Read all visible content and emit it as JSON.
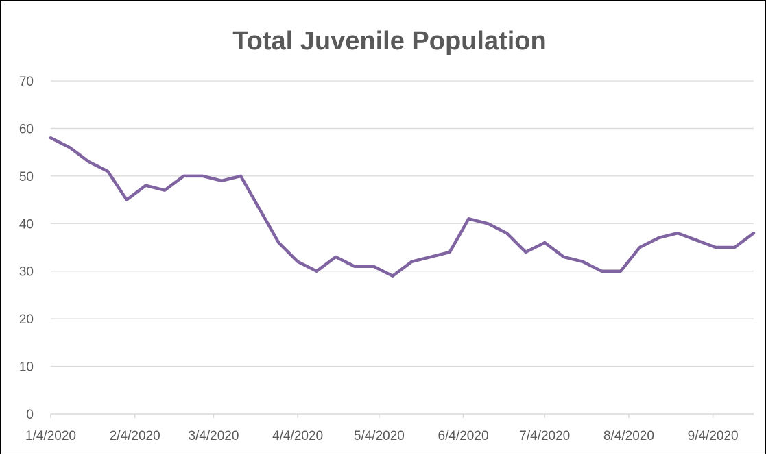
{
  "chart_data": {
    "type": "line",
    "title": "Total Juvenile Population",
    "xlabel": "",
    "ylabel": "",
    "ylim": [
      0,
      70
    ],
    "yticks": [
      0,
      10,
      20,
      30,
      40,
      50,
      60,
      70
    ],
    "xlim": [
      "2020-01-04",
      "2020-09-19"
    ],
    "x_tick_labels": [
      {
        "date": "2020-01-04",
        "label": "1/4/2020"
      },
      {
        "date": "2020-02-04",
        "label": "2/4/2020"
      },
      {
        "date": "2020-03-04",
        "label": "3/4/2020"
      },
      {
        "date": "2020-04-04",
        "label": "4/4/2020"
      },
      {
        "date": "2020-05-04",
        "label": "5/4/2020"
      },
      {
        "date": "2020-06-04",
        "label": "6/4/2020"
      },
      {
        "date": "2020-07-04",
        "label": "7/4/2020"
      },
      {
        "date": "2020-08-04",
        "label": "8/4/2020"
      },
      {
        "date": "2020-09-04",
        "label": "9/4/2020"
      }
    ],
    "grid": true,
    "legend": "none",
    "series": [
      {
        "color": "#8064a2",
        "points": [
          {
            "x": "2020-01-04",
            "y": 58
          },
          {
            "x": "2020-01-11",
            "y": 56
          },
          {
            "x": "2020-01-18",
            "y": 53
          },
          {
            "x": "2020-01-25",
            "y": 51
          },
          {
            "x": "2020-02-01",
            "y": 45
          },
          {
            "x": "2020-02-08",
            "y": 48
          },
          {
            "x": "2020-02-15",
            "y": 47
          },
          {
            "x": "2020-02-22",
            "y": 50
          },
          {
            "x": "2020-02-29",
            "y": 50
          },
          {
            "x": "2020-03-07",
            "y": 49
          },
          {
            "x": "2020-03-14",
            "y": 50
          },
          {
            "x": "2020-03-21",
            "y": 43
          },
          {
            "x": "2020-03-28",
            "y": 36
          },
          {
            "x": "2020-04-04",
            "y": 32
          },
          {
            "x": "2020-04-11",
            "y": 30
          },
          {
            "x": "2020-04-18",
            "y": 33
          },
          {
            "x": "2020-04-25",
            "y": 31
          },
          {
            "x": "2020-05-02",
            "y": 31
          },
          {
            "x": "2020-05-09",
            "y": 29
          },
          {
            "x": "2020-05-16",
            "y": 32
          },
          {
            "x": "2020-05-23",
            "y": 33
          },
          {
            "x": "2020-05-30",
            "y": 34
          },
          {
            "x": "2020-06-06",
            "y": 41
          },
          {
            "x": "2020-06-13",
            "y": 40
          },
          {
            "x": "2020-06-20",
            "y": 38
          },
          {
            "x": "2020-06-27",
            "y": 34
          },
          {
            "x": "2020-07-04",
            "y": 36
          },
          {
            "x": "2020-07-11",
            "y": 33
          },
          {
            "x": "2020-07-18",
            "y": 32
          },
          {
            "x": "2020-07-25",
            "y": 30
          },
          {
            "x": "2020-08-01",
            "y": 30
          },
          {
            "x": "2020-08-08",
            "y": 35
          },
          {
            "x": "2020-08-15",
            "y": 37
          },
          {
            "x": "2020-08-22",
            "y": 38
          },
          {
            "x": "2020-08-29",
            "y": 36.5
          },
          {
            "x": "2020-09-05",
            "y": 35
          },
          {
            "x": "2020-09-12",
            "y": 35
          },
          {
            "x": "2020-09-19",
            "y": 38
          }
        ]
      }
    ]
  },
  "colors": {
    "line": "#8064a2",
    "grid": "#d9d9d9",
    "text": "#595959"
  }
}
